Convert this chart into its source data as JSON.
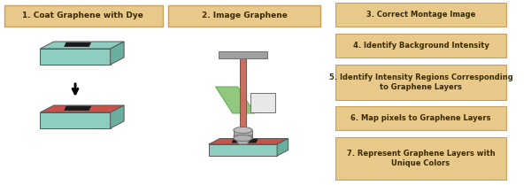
{
  "background_color": "#ffffff",
  "box_color": "#E8C98A",
  "box_text_color": "#3a2a00",
  "box_border_color": "#C8A060",
  "figsize": [
    6.0,
    2.09
  ],
  "dpi": 100,
  "steps_right": [
    "3. Correct Montage Image",
    "4. Identify Background Intensity",
    "5. Identify Intensity Regions Corresponding\nto Graphene Layers",
    "6. Map pixels to Graphene Layers",
    "7. Represent Graphene Layers with\nUnique Colors"
  ],
  "label1": "1. Coat Graphene with Dye",
  "label2": "2. Image Graphene",
  "teal_color": "#8ECEC0",
  "teal_dark_color": "#6AAEA0",
  "red_color": "#C8524A",
  "dark_color": "#1a1a1a",
  "microscope_stem_color": "#C87060",
  "microscope_stem_edge": "#805040",
  "microscope_lens_color": "#B0B0B0",
  "microscope_lens_color2": "#C0C0C0",
  "crossbar_color": "#A0A0A0",
  "crossbar_edge": "#707070",
  "green_beam_color": "#90C880",
  "green_beam_edge": "#60A850",
  "white_box_color": "#E8E8E8",
  "cone_color": "#B0B0B0",
  "slab_edge": "#555555"
}
